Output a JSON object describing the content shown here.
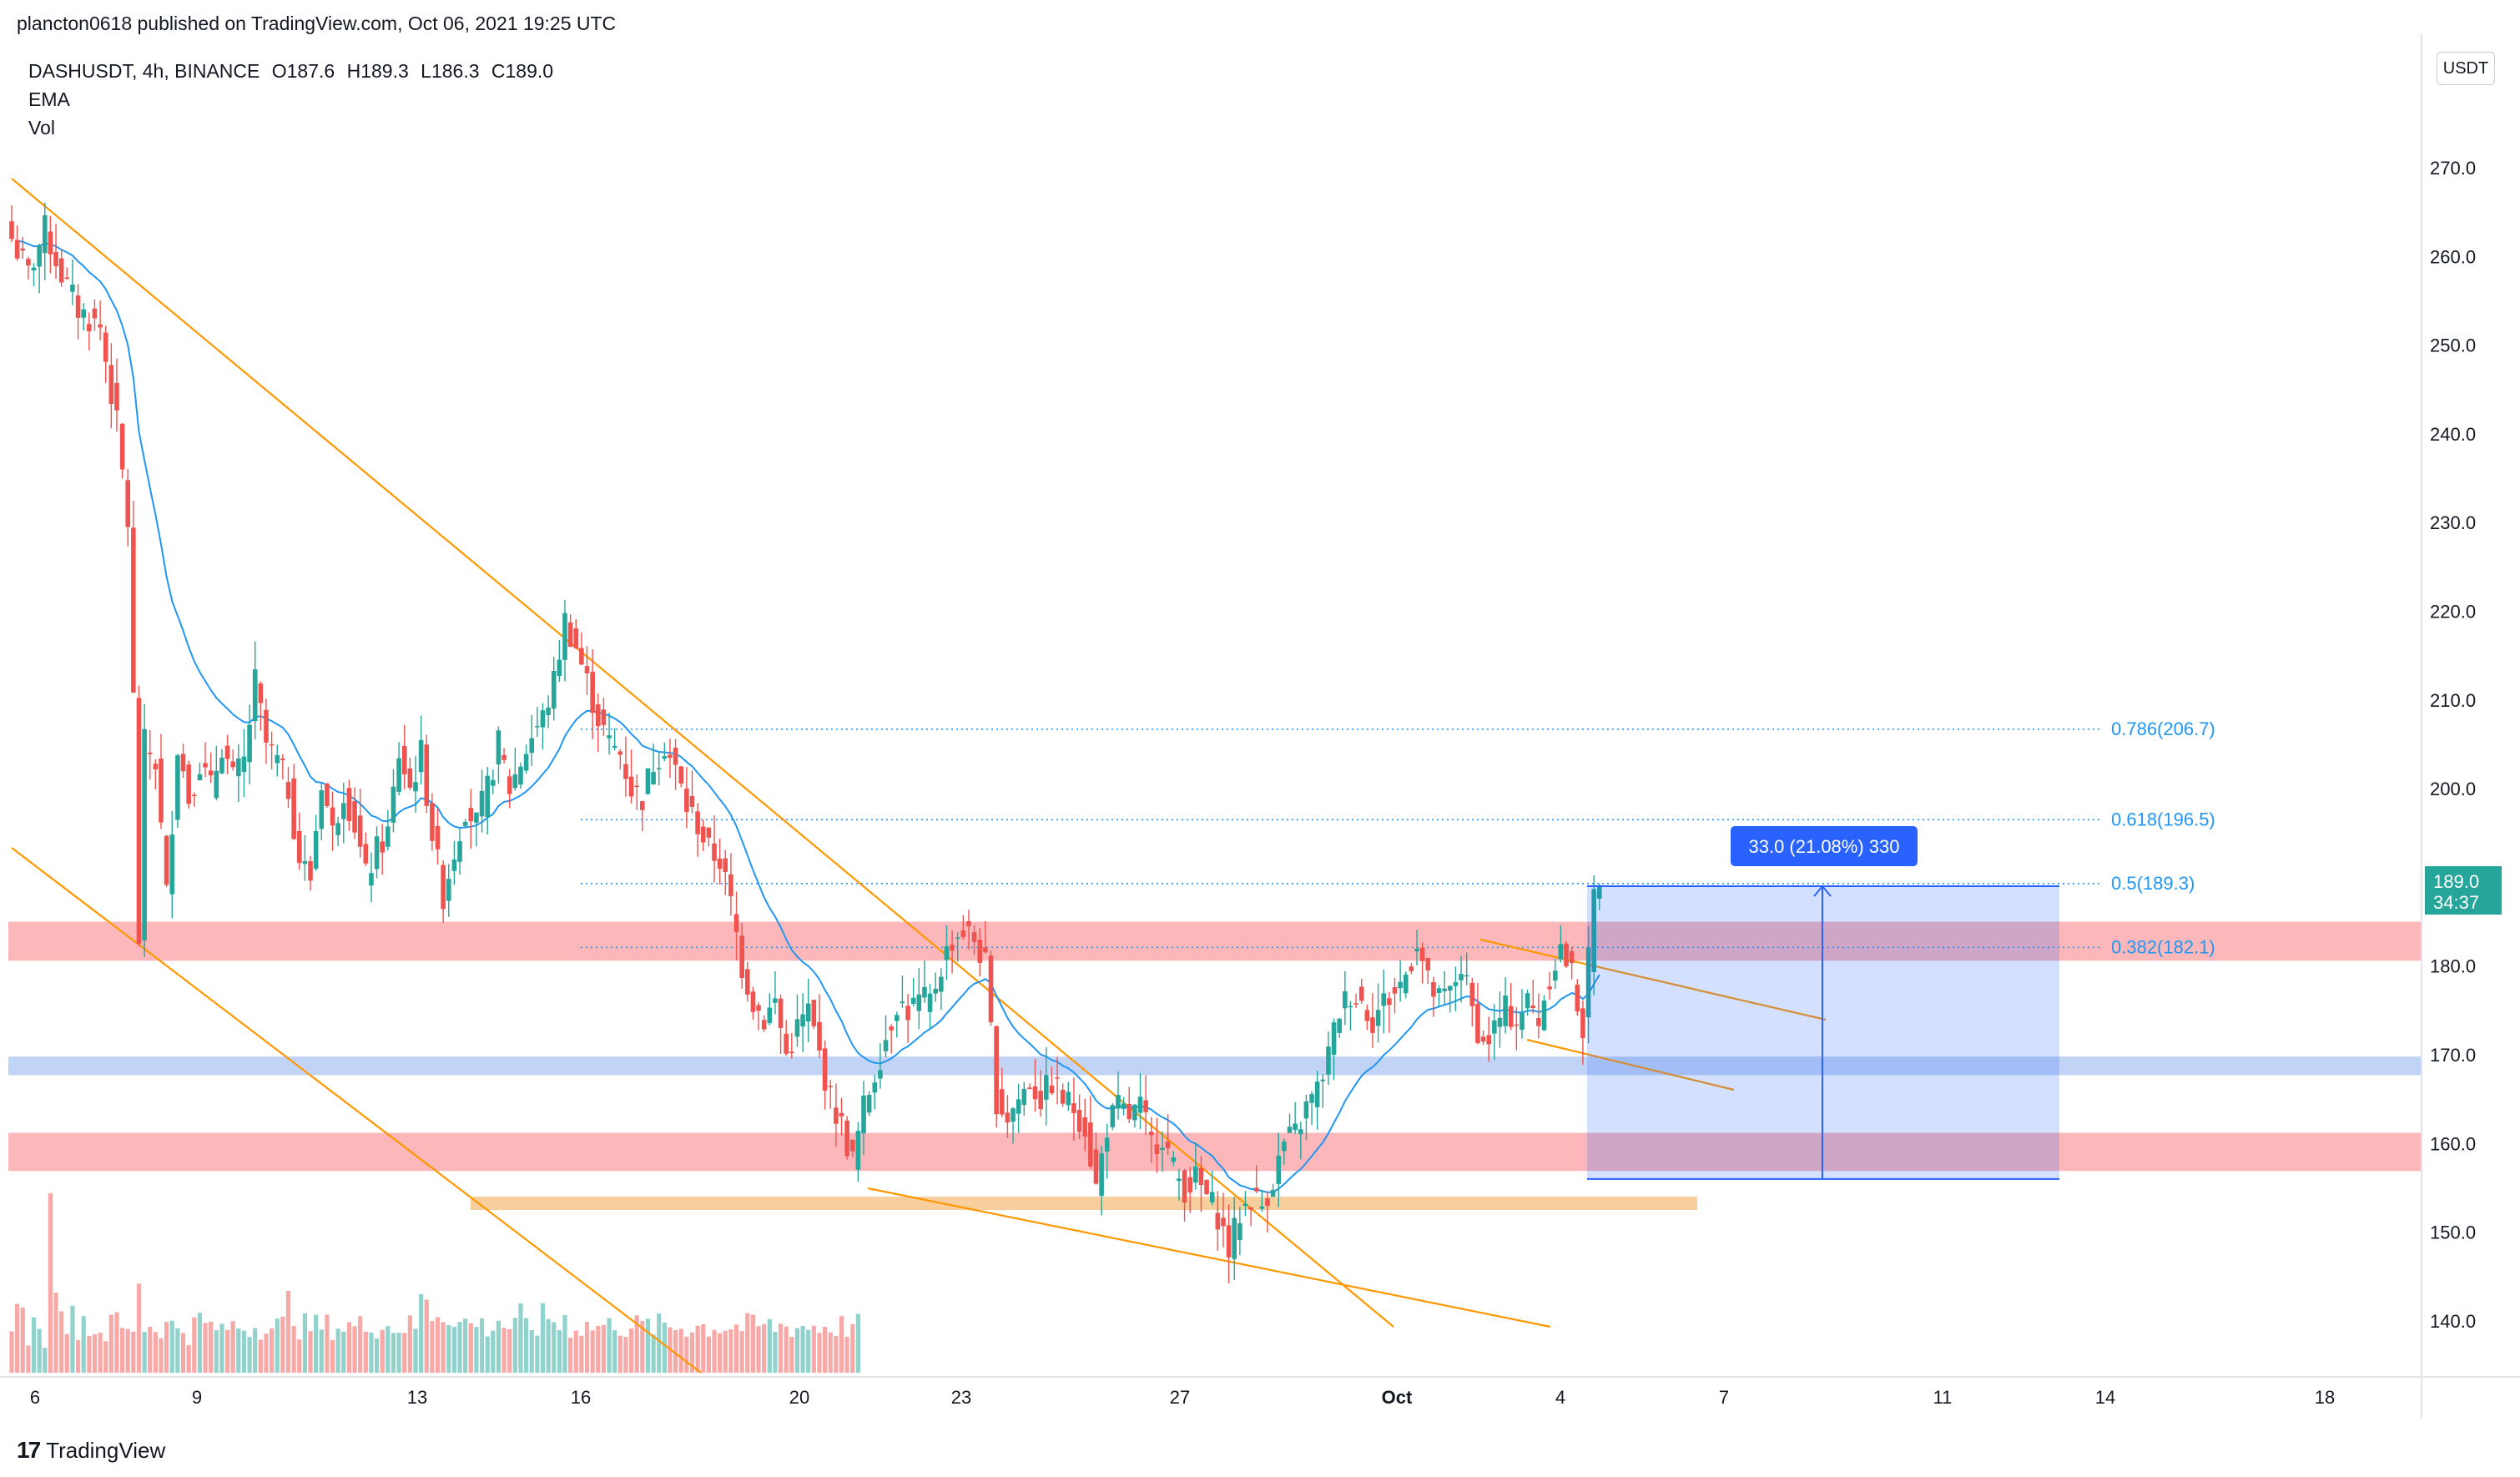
{
  "header": {
    "published_by": "plancton0618 published on TradingView.com, Oct 06, 2021 19:25 UTC",
    "symbol": "DASHUSDT, 4h, BINANCE",
    "ohlc": {
      "open": "O187.6",
      "high": "H189.3",
      "low": "L186.3",
      "close": "C189.0"
    },
    "indicators": [
      "EMA",
      "Vol"
    ]
  },
  "price_axis": {
    "currency": "USDT",
    "last_price": "189.0",
    "countdown": "34:37"
  },
  "footer": {
    "logo_text": "TradingView"
  },
  "colors": {
    "up": "#26a69a",
    "down": "#ef5350",
    "ema": "#2196f3",
    "trend": "#ff9800",
    "fib": "#2196f3",
    "resistance_zone": "#f77c80",
    "support_zone": "#90b0ee",
    "sand_zone": "#f2a64b",
    "measure": "#2962ff"
  },
  "chart_data": {
    "type": "candlestick",
    "symbol": "DASHUSDT",
    "interval": "4h",
    "exchange": "BINANCE",
    "ylim": [
      134,
      281
    ],
    "y_ticks": [
      "270.0",
      "260.0",
      "250.0",
      "240.0",
      "230.0",
      "220.0",
      "210.0",
      "200.0",
      "190.0",
      "180.0",
      "170.0",
      "160.0",
      "150.0",
      "140.0"
    ],
    "x_ticks": [
      "6",
      "9",
      "13",
      "16",
      "20",
      "23",
      "27",
      "Oct",
      "4",
      "7",
      "11",
      "14",
      "18"
    ],
    "fib_levels": [
      {
        "label": "0.786(206.7)",
        "price": 206.7
      },
      {
        "label": "0.618(196.5)",
        "price": 196.5
      },
      {
        "label": "0.5(189.3)",
        "price": 189.3
      },
      {
        "label": "0.382(182.1)",
        "price": 182.1
      }
    ],
    "measure": {
      "label": "33.0 (21.08%) 330",
      "from_price": 156.0,
      "to_price": 189.0
    },
    "zones": [
      {
        "kind": "resistance",
        "from": 180.6,
        "to": 185.0
      },
      {
        "kind": "support",
        "from": 167.7,
        "to": 169.8
      },
      {
        "kind": "resistance",
        "from": 156.9,
        "to": 161.2
      },
      {
        "kind": "sand",
        "from": 152.5,
        "to": 154.0
      }
    ],
    "close_anchors": [
      [
        0,
        262
      ],
      [
        3,
        258
      ],
      [
        6,
        263
      ],
      [
        9,
        258
      ],
      [
        12,
        254
      ],
      [
        16,
        252
      ],
      [
        19,
        241
      ],
      [
        21,
        230
      ],
      [
        22,
        210
      ],
      [
        23,
        183
      ],
      [
        24,
        205
      ],
      [
        26,
        203
      ],
      [
        28,
        188
      ],
      [
        30,
        205
      ],
      [
        32,
        199
      ],
      [
        34,
        203
      ],
      [
        36,
        200
      ],
      [
        38,
        205
      ],
      [
        40,
        201
      ],
      [
        42,
        203
      ],
      [
        44,
        212
      ],
      [
        46,
        205
      ],
      [
        48,
        203
      ],
      [
        50,
        200
      ],
      [
        52,
        192
      ],
      [
        54,
        190
      ],
      [
        56,
        201
      ],
      [
        58,
        195
      ],
      [
        60,
        200
      ],
      [
        62,
        196
      ],
      [
        64,
        190
      ],
      [
        66,
        193
      ],
      [
        68,
        195
      ],
      [
        70,
        204
      ],
      [
        72,
        200
      ],
      [
        74,
        204
      ],
      [
        76,
        195
      ],
      [
        78,
        188
      ],
      [
        80,
        193
      ],
      [
        82,
        198
      ],
      [
        84,
        196
      ],
      [
        86,
        200
      ],
      [
        88,
        205
      ],
      [
        90,
        200
      ],
      [
        92,
        203
      ],
      [
        94,
        206
      ],
      [
        96,
        208
      ],
      [
        98,
        212
      ],
      [
        100,
        219
      ],
      [
        102,
        216
      ],
      [
        104,
        212
      ],
      [
        106,
        208
      ],
      [
        108,
        205
      ],
      [
        110,
        204
      ],
      [
        112,
        200
      ],
      [
        114,
        199
      ],
      [
        116,
        203
      ],
      [
        118,
        205
      ],
      [
        120,
        202
      ],
      [
        122,
        198
      ],
      [
        124,
        196
      ],
      [
        126,
        193
      ],
      [
        128,
        192
      ],
      [
        130,
        187
      ],
      [
        132,
        180
      ],
      [
        134,
        176
      ],
      [
        136,
        174
      ],
      [
        138,
        176
      ],
      [
        140,
        170
      ],
      [
        142,
        173
      ],
      [
        144,
        175
      ],
      [
        146,
        170
      ],
      [
        148,
        165
      ],
      [
        150,
        162
      ],
      [
        152,
        158
      ],
      [
        154,
        164
      ],
      [
        156,
        168
      ],
      [
        158,
        172
      ],
      [
        160,
        176
      ],
      [
        162,
        175
      ],
      [
        164,
        176
      ],
      [
        166,
        176
      ],
      [
        168,
        180
      ],
      [
        170,
        183
      ],
      [
        172,
        184
      ],
      [
        174,
        183
      ],
      [
        176,
        180
      ],
      [
        178,
        165
      ],
      [
        180,
        163
      ],
      [
        182,
        165
      ],
      [
        184,
        167
      ],
      [
        186,
        165
      ],
      [
        188,
        167
      ],
      [
        190,
        165
      ],
      [
        192,
        164
      ],
      [
        194,
        162
      ],
      [
        196,
        155
      ],
      [
        198,
        162
      ],
      [
        200,
        164
      ],
      [
        202,
        163
      ],
      [
        204,
        164
      ],
      [
        206,
        160
      ],
      [
        208,
        161
      ],
      [
        210,
        157
      ],
      [
        212,
        155
      ],
      [
        214,
        156
      ],
      [
        216,
        154
      ],
      [
        218,
        152
      ],
      [
        220,
        148
      ],
      [
        222,
        152
      ],
      [
        224,
        154
      ],
      [
        226,
        153
      ],
      [
        228,
        156
      ],
      [
        230,
        160
      ],
      [
        232,
        161
      ],
      [
        234,
        164
      ],
      [
        236,
        166
      ],
      [
        238,
        170
      ],
      [
        240,
        175
      ],
      [
        242,
        177
      ],
      [
        244,
        176
      ],
      [
        246,
        174
      ],
      [
        248,
        176
      ],
      [
        250,
        177
      ],
      [
        252,
        179
      ],
      [
        254,
        183
      ],
      [
        256,
        178
      ],
      [
        258,
        176
      ],
      [
        260,
        177
      ],
      [
        262,
        180
      ],
      [
        264,
        175
      ],
      [
        266,
        171
      ],
      [
        268,
        173
      ],
      [
        270,
        175
      ],
      [
        272,
        174
      ],
      [
        274,
        176
      ],
      [
        276,
        174
      ],
      [
        278,
        179
      ],
      [
        280,
        182
      ],
      [
        282,
        179
      ],
      [
        284,
        173
      ],
      [
        286,
        188
      ],
      [
        287,
        189
      ]
    ],
    "volume_level_factors": [
      0.35,
      0.35,
      0.35,
      0.25,
      0.3,
      0.35,
      0.2,
      1.0,
      0.7,
      0.55,
      0.3,
      0.35,
      0.3,
      0.35,
      0.3,
      0.25,
      0.3,
      0.25,
      0.3,
      0.35,
      0.3,
      0.25,
      0.3,
      0.35,
      0.3,
      0.3,
      0.3,
      0.3,
      0.3,
      0.3,
      0.3,
      0.3,
      0.25,
      0.3,
      0.35,
      0.3,
      0.3,
      0.3,
      0.25,
      0.3,
      0.3,
      0.3,
      0.3,
      0.3,
      0.3,
      0.3,
      0.35,
      0.3,
      0.3,
      0.3,
      0.45,
      0.4,
      0.3,
      0.3,
      0.3,
      0.3,
      0.3,
      0.3,
      0.3,
      0.3,
      0.3,
      0.3,
      0.3,
      0.3,
      0.3,
      0.35,
      0.3,
      0.3,
      0.3,
      0.3,
      0.3,
      0.3,
      0.3,
      0.3,
      0.45,
      0.5,
      0.4,
      0.4,
      0.4,
      0.4,
      0.3,
      0.3,
      0.35,
      0.3,
      0.35,
      0.3,
      0.3,
      0.3,
      0.35,
      0.3,
      0.3,
      0.3,
      0.35,
      0.3,
      0.3,
      0.3,
      0.35,
      0.35,
      0.35,
      0.3,
      0.35,
      0.3,
      0.3,
      0.3,
      0.3,
      0.3,
      0.3,
      0.3,
      0.3,
      0.35,
      0.3,
      0.3,
      0.3,
      0.3,
      0.3,
      0.3,
      0.3,
      0.3,
      0.3,
      0.3,
      0.3,
      0.3,
      0.3,
      0.3,
      0.3,
      0.3,
      0.3,
      0.3,
      0.3,
      0.3,
      0.3,
      0.3,
      0.3,
      0.3,
      0.3,
      0.3,
      0.3,
      0.3,
      0.3,
      0.3,
      0.3,
      0.3,
      0.3,
      0.3,
      0.3,
      0.3,
      0.3,
      0.3,
      0.3,
      0.3,
      0.3,
      0.3,
      0.3,
      0.3
    ]
  }
}
